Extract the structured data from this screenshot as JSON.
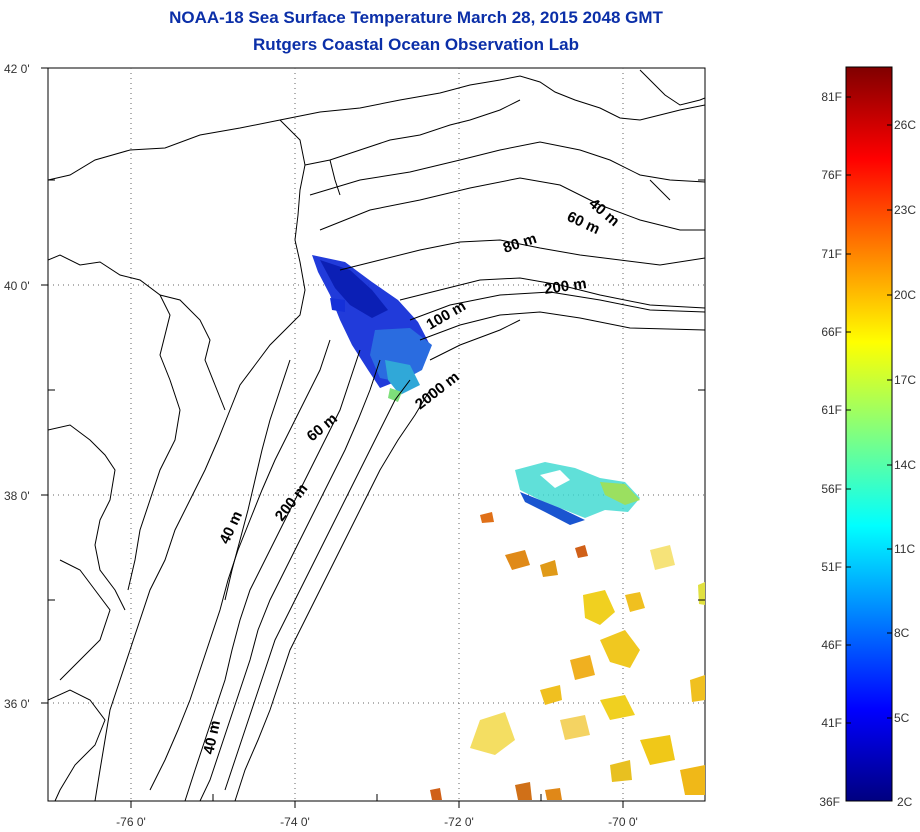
{
  "title": {
    "line1": "NOAA-18 Sea Surface Temperature March 28, 2015 2048 GMT",
    "line2": "Rutgers Coastal Ocean Observation Lab"
  },
  "map": {
    "lon_range": [
      -77,
      -69
    ],
    "lat_range": [
      35,
      42
    ],
    "lat_ticks": [
      {
        "value": 42,
        "label": "42 0'"
      },
      {
        "value": 40,
        "label": "40 0'"
      },
      {
        "value": 38,
        "label": "38 0'"
      },
      {
        "value": 36,
        "label": "36 0'"
      }
    ],
    "lon_ticks": [
      {
        "value": -76,
        "label": "-76 0'"
      },
      {
        "value": -74,
        "label": "-74 0'"
      },
      {
        "value": -72,
        "label": "-72 0'"
      },
      {
        "value": -70,
        "label": "-70 0'"
      }
    ],
    "isobath_labels": [
      {
        "text": "40 m"
      },
      {
        "text": "60 m"
      },
      {
        "text": "80 m"
      },
      {
        "text": "200 m"
      },
      {
        "text": "100 m"
      },
      {
        "text": "2000 m"
      },
      {
        "text": "60 m"
      },
      {
        "text": "200 m"
      },
      {
        "text": "40 m"
      },
      {
        "text": "40 m"
      }
    ]
  },
  "colorbar": {
    "colors": [
      "#000080",
      "#0000ff",
      "#0080ff",
      "#00ffff",
      "#80ff80",
      "#ffff00",
      "#ff8000",
      "#ff0000",
      "#800000"
    ],
    "fahrenheit_labels": [
      "81F",
      "76F",
      "71F",
      "66F",
      "61F",
      "56F",
      "51F",
      "46F",
      "41F",
      "36F"
    ],
    "celsius_labels": [
      "26C",
      "23C",
      "20C",
      "17C",
      "14C",
      "11C",
      "8C",
      "5C",
      "2C"
    ]
  }
}
